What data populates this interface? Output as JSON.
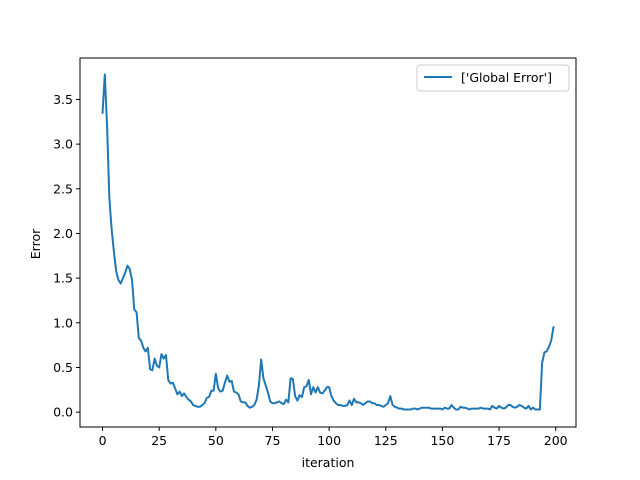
{
  "chart_data": {
    "type": "line",
    "title": "",
    "xlabel": "iteration",
    "ylabel": "Error",
    "xlim": [
      -9.95,
      208.95
    ],
    "ylim": [
      -0.166,
      3.964
    ],
    "xticks": [
      0,
      25,
      50,
      75,
      100,
      125,
      150,
      175,
      200
    ],
    "xtick_labels": [
      "0",
      "25",
      "50",
      "75",
      "100",
      "125",
      "150",
      "175",
      "200"
    ],
    "yticks": [
      0.0,
      0.5,
      1.0,
      1.5,
      2.0,
      2.5,
      3.0,
      3.5
    ],
    "ytick_labels": [
      "0.0",
      "0.5",
      "1.0",
      "1.5",
      "2.0",
      "2.5",
      "3.0",
      "3.5"
    ],
    "grid": false,
    "legend_position": "upper right",
    "series": [
      {
        "name": "['Global Error']",
        "color": "#1f77b4",
        "points": [
          [
            0,
            3.35
          ],
          [
            1,
            3.78
          ],
          [
            2,
            3.2
          ],
          [
            3,
            2.4
          ],
          [
            4,
            2.05
          ],
          [
            5,
            1.8
          ],
          [
            6,
            1.58
          ],
          [
            7,
            1.48
          ],
          [
            8,
            1.44
          ],
          [
            9,
            1.5
          ],
          [
            10,
            1.56
          ],
          [
            11,
            1.64
          ],
          [
            12,
            1.6
          ],
          [
            13,
            1.48
          ],
          [
            14,
            1.15
          ],
          [
            15,
            1.12
          ],
          [
            16,
            0.83
          ],
          [
            17,
            0.8
          ],
          [
            18,
            0.72
          ],
          [
            19,
            0.68
          ],
          [
            20,
            0.72
          ],
          [
            21,
            0.48
          ],
          [
            22,
            0.47
          ],
          [
            23,
            0.6
          ],
          [
            24,
            0.52
          ],
          [
            25,
            0.5
          ],
          [
            26,
            0.65
          ],
          [
            27,
            0.6
          ],
          [
            28,
            0.64
          ],
          [
            29,
            0.36
          ],
          [
            30,
            0.32
          ],
          [
            31,
            0.33
          ],
          [
            32,
            0.27
          ],
          [
            33,
            0.2
          ],
          [
            34,
            0.23
          ],
          [
            35,
            0.18
          ],
          [
            36,
            0.21
          ],
          [
            37,
            0.17
          ],
          [
            38,
            0.14
          ],
          [
            39,
            0.12
          ],
          [
            40,
            0.08
          ],
          [
            41,
            0.07
          ],
          [
            42,
            0.06
          ],
          [
            43,
            0.06
          ],
          [
            44,
            0.08
          ],
          [
            45,
            0.1
          ],
          [
            46,
            0.16
          ],
          [
            47,
            0.17
          ],
          [
            48,
            0.24
          ],
          [
            49,
            0.24
          ],
          [
            50,
            0.43
          ],
          [
            51,
            0.27
          ],
          [
            52,
            0.23
          ],
          [
            53,
            0.24
          ],
          [
            54,
            0.33
          ],
          [
            55,
            0.41
          ],
          [
            56,
            0.34
          ],
          [
            57,
            0.35
          ],
          [
            58,
            0.23
          ],
          [
            59,
            0.22
          ],
          [
            60,
            0.2
          ],
          [
            61,
            0.12
          ],
          [
            62,
            0.11
          ],
          [
            63,
            0.11
          ],
          [
            64,
            0.07
          ],
          [
            65,
            0.05
          ],
          [
            66,
            0.06
          ],
          [
            67,
            0.08
          ],
          [
            68,
            0.14
          ],
          [
            69,
            0.3
          ],
          [
            70,
            0.59
          ],
          [
            71,
            0.38
          ],
          [
            72,
            0.3
          ],
          [
            73,
            0.22
          ],
          [
            74,
            0.12
          ],
          [
            75,
            0.1
          ],
          [
            76,
            0.1
          ],
          [
            77,
            0.11
          ],
          [
            78,
            0.12
          ],
          [
            79,
            0.1
          ],
          [
            80,
            0.09
          ],
          [
            81,
            0.14
          ],
          [
            82,
            0.11
          ],
          [
            83,
            0.38
          ],
          [
            84,
            0.37
          ],
          [
            85,
            0.18
          ],
          [
            86,
            0.13
          ],
          [
            87,
            0.19
          ],
          [
            88,
            0.17
          ],
          [
            89,
            0.28
          ],
          [
            90,
            0.29
          ],
          [
            91,
            0.36
          ],
          [
            92,
            0.2
          ],
          [
            93,
            0.28
          ],
          [
            94,
            0.22
          ],
          [
            95,
            0.28
          ],
          [
            96,
            0.22
          ],
          [
            97,
            0.21
          ],
          [
            98,
            0.24
          ],
          [
            99,
            0.28
          ],
          [
            100,
            0.28
          ],
          [
            101,
            0.18
          ],
          [
            102,
            0.13
          ],
          [
            103,
            0.1
          ],
          [
            104,
            0.08
          ],
          [
            105,
            0.08
          ],
          [
            106,
            0.07
          ],
          [
            107,
            0.07
          ],
          [
            108,
            0.08
          ],
          [
            109,
            0.13
          ],
          [
            110,
            0.08
          ],
          [
            111,
            0.15
          ],
          [
            112,
            0.11
          ],
          [
            113,
            0.11
          ],
          [
            114,
            0.1
          ],
          [
            115,
            0.08
          ],
          [
            116,
            0.1
          ],
          [
            117,
            0.12
          ],
          [
            118,
            0.12
          ],
          [
            119,
            0.1
          ],
          [
            120,
            0.1
          ],
          [
            121,
            0.08
          ],
          [
            122,
            0.08
          ],
          [
            123,
            0.07
          ],
          [
            124,
            0.06
          ],
          [
            125,
            0.08
          ],
          [
            126,
            0.1
          ],
          [
            127,
            0.18
          ],
          [
            128,
            0.08
          ],
          [
            129,
            0.06
          ],
          [
            130,
            0.05
          ],
          [
            131,
            0.04
          ],
          [
            132,
            0.04
          ],
          [
            133,
            0.03
          ],
          [
            134,
            0.03
          ],
          [
            135,
            0.03
          ],
          [
            136,
            0.03
          ],
          [
            137,
            0.04
          ],
          [
            138,
            0.04
          ],
          [
            139,
            0.03
          ],
          [
            140,
            0.04
          ],
          [
            141,
            0.05
          ],
          [
            142,
            0.05
          ],
          [
            143,
            0.05
          ],
          [
            144,
            0.05
          ],
          [
            145,
            0.04
          ],
          [
            146,
            0.04
          ],
          [
            147,
            0.04
          ],
          [
            148,
            0.04
          ],
          [
            149,
            0.04
          ],
          [
            150,
            0.03
          ],
          [
            151,
            0.05
          ],
          [
            152,
            0.04
          ],
          [
            153,
            0.04
          ],
          [
            154,
            0.08
          ],
          [
            155,
            0.05
          ],
          [
            156,
            0.03
          ],
          [
            157,
            0.03
          ],
          [
            158,
            0.06
          ],
          [
            159,
            0.05
          ],
          [
            160,
            0.05
          ],
          [
            161,
            0.04
          ],
          [
            162,
            0.03
          ],
          [
            163,
            0.04
          ],
          [
            164,
            0.04
          ],
          [
            165,
            0.04
          ],
          [
            166,
            0.04
          ],
          [
            167,
            0.05
          ],
          [
            168,
            0.04
          ],
          [
            169,
            0.04
          ],
          [
            170,
            0.04
          ],
          [
            171,
            0.03
          ],
          [
            172,
            0.07
          ],
          [
            173,
            0.05
          ],
          [
            174,
            0.04
          ],
          [
            175,
            0.07
          ],
          [
            176,
            0.05
          ],
          [
            177,
            0.04
          ],
          [
            178,
            0.05
          ],
          [
            179,
            0.08
          ],
          [
            180,
            0.08
          ],
          [
            181,
            0.06
          ],
          [
            182,
            0.05
          ],
          [
            183,
            0.06
          ],
          [
            184,
            0.08
          ],
          [
            185,
            0.07
          ],
          [
            186,
            0.05
          ],
          [
            187,
            0.04
          ],
          [
            188,
            0.07
          ],
          [
            189,
            0.03
          ],
          [
            190,
            0.05
          ],
          [
            191,
            0.03
          ],
          [
            192,
            0.03
          ],
          [
            193,
            0.03
          ],
          [
            194,
            0.55
          ],
          [
            195,
            0.67
          ],
          [
            196,
            0.68
          ],
          [
            197,
            0.73
          ],
          [
            198,
            0.8
          ],
          [
            199,
            0.95
          ]
        ]
      }
    ]
  }
}
